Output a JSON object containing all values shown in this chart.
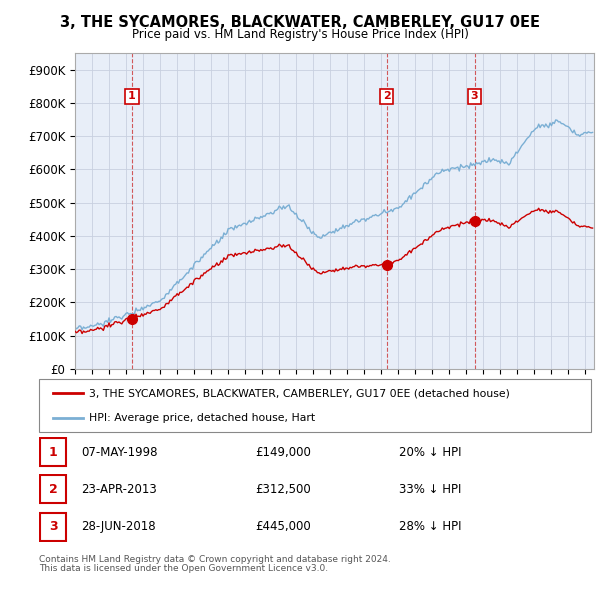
{
  "title": "3, THE SYCAMORES, BLACKWATER, CAMBERLEY, GU17 0EE",
  "subtitle": "Price paid vs. HM Land Registry's House Price Index (HPI)",
  "sale_color": "#cc0000",
  "hpi_color": "#7bafd4",
  "sale_label": "3, THE SYCAMORES, BLACKWATER, CAMBERLEY, GU17 0EE (detached house)",
  "hpi_label": "HPI: Average price, detached house, Hart",
  "transactions": [
    {
      "num": 1,
      "date": "07-MAY-1998",
      "year": 1998.35,
      "price": 149000,
      "pct": "20% ↓ HPI"
    },
    {
      "num": 2,
      "date": "23-APR-2013",
      "year": 2013.31,
      "price": 312500,
      "pct": "33% ↓ HPI"
    },
    {
      "num": 3,
      "date": "28-JUN-2018",
      "year": 2018.48,
      "price": 445000,
      "pct": "28% ↓ HPI"
    }
  ],
  "footer_line1": "Contains HM Land Registry data © Crown copyright and database right 2024.",
  "footer_line2": "This data is licensed under the Open Government Licence v3.0.",
  "yticks": [
    0,
    100000,
    200000,
    300000,
    400000,
    500000,
    600000,
    700000,
    800000,
    900000
  ],
  "ytick_labels": [
    "£0",
    "£100K",
    "£200K",
    "£300K",
    "£400K",
    "£500K",
    "£600K",
    "£700K",
    "£800K",
    "£900K"
  ],
  "ylim": [
    0,
    950000
  ],
  "xlim_start": 1995.0,
  "xlim_end": 2025.5,
  "chart_bg": "#e8eef8",
  "grid_color": "#c8d0e0"
}
